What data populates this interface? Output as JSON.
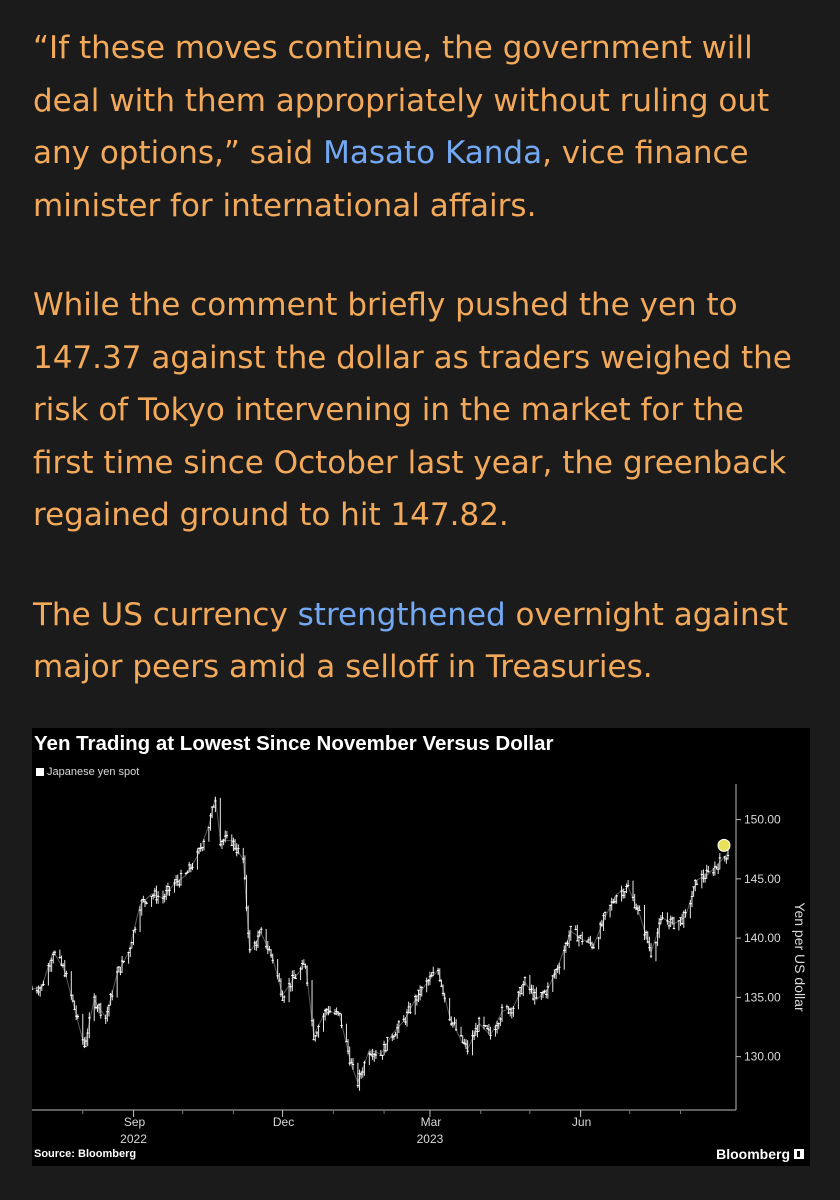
{
  "article": {
    "p1_before": "“If these moves continue, the government will deal with them appropriately without ruling out any options,” said ",
    "p1_link": "Masato Kanda",
    "p1_after": ", vice finance minister for international affairs.",
    "p2": "While the comment briefly pushed the yen to 147.37 against the dollar as traders weighed the risk of Tokyo intervening in the market for the first time since October last year, the greenback regained ground to hit 147.82.",
    "p3_before": "The US currency ",
    "p3_link": "strengthened",
    "p3_after": " overnight against major peers amid a selloff in Treasuries."
  },
  "colors": {
    "article_text": "#f3a95a",
    "link": "#73a8f2",
    "chart_bg": "#000000",
    "series": "#ffffff",
    "highlight": "#e8e25a"
  },
  "chart_data": {
    "type": "line",
    "title": "Yen Trading at Lowest Since November Versus Dollar",
    "legend": [
      "Japanese yen spot"
    ],
    "ylabel": "Yen per US dollar",
    "yticks": [
      "130.00",
      "135.00",
      "140.00",
      "145.00",
      "150.00"
    ],
    "ylim": [
      125.5,
      153
    ],
    "xticks": [
      {
        "label": "Sep",
        "date": "2022-09-01"
      },
      {
        "label": "Dec",
        "date": "2022-12-01"
      },
      {
        "label": "Mar",
        "date": "2023-03-01"
      },
      {
        "label": "Jun",
        "date": "2023-06-01"
      }
    ],
    "year_labels": [
      {
        "label": "2022",
        "date": "2022-09-01"
      },
      {
        "label": "2023",
        "date": "2023-03-01"
      }
    ],
    "x_start": "2022-07-01",
    "x_end": "2023-08-30",
    "grid": false,
    "legend_position": "top-left",
    "series": [
      {
        "name": "Japanese yen spot",
        "points": [
          [
            "2022-07-01",
            135.7
          ],
          [
            "2022-07-07",
            135.9
          ],
          [
            "2022-07-14",
            138.9
          ],
          [
            "2022-07-21",
            137.2
          ],
          [
            "2022-07-28",
            133.5
          ],
          [
            "2022-08-02",
            130.9
          ],
          [
            "2022-08-08",
            134.8
          ],
          [
            "2022-08-15",
            133.3
          ],
          [
            "2022-08-22",
            137.0
          ],
          [
            "2022-08-29",
            138.8
          ],
          [
            "2022-09-05",
            142.8
          ],
          [
            "2022-09-12",
            143.7
          ],
          [
            "2022-09-19",
            143.4
          ],
          [
            "2022-09-26",
            144.6
          ],
          [
            "2022-10-03",
            145.3
          ],
          [
            "2022-10-10",
            146.9
          ],
          [
            "2022-10-17",
            149.5
          ],
          [
            "2022-10-21",
            151.9
          ],
          [
            "2022-10-24",
            148.3
          ],
          [
            "2022-10-31",
            148.2
          ],
          [
            "2022-11-07",
            146.6
          ],
          [
            "2022-11-11",
            138.8
          ],
          [
            "2022-11-18",
            140.4
          ],
          [
            "2022-11-25",
            138.3
          ],
          [
            "2022-12-01",
            135.2
          ],
          [
            "2022-12-08",
            136.6
          ],
          [
            "2022-12-15",
            137.8
          ],
          [
            "2022-12-20",
            131.8
          ],
          [
            "2022-12-28",
            134.0
          ],
          [
            "2023-01-05",
            133.4
          ],
          [
            "2023-01-12",
            129.3
          ],
          [
            "2023-01-16",
            127.8
          ],
          [
            "2023-01-23",
            130.6
          ],
          [
            "2023-01-30",
            130.2
          ],
          [
            "2023-02-06",
            131.9
          ],
          [
            "2023-02-13",
            133.0
          ],
          [
            "2023-02-20",
            134.8
          ],
          [
            "2023-02-27",
            136.2
          ],
          [
            "2023-03-06",
            137.3
          ],
          [
            "2023-03-13",
            133.4
          ],
          [
            "2023-03-20",
            131.4
          ],
          [
            "2023-03-24",
            130.6
          ],
          [
            "2023-03-31",
            132.8
          ],
          [
            "2023-04-07",
            131.8
          ],
          [
            "2023-04-14",
            133.8
          ],
          [
            "2023-04-21",
            134.2
          ],
          [
            "2023-04-28",
            136.3
          ],
          [
            "2023-05-05",
            134.8
          ],
          [
            "2023-05-12",
            135.7
          ],
          [
            "2023-05-19",
            137.9
          ],
          [
            "2023-05-26",
            140.6
          ],
          [
            "2023-06-02",
            139.9
          ],
          [
            "2023-06-09",
            139.4
          ],
          [
            "2023-06-16",
            141.8
          ],
          [
            "2023-06-23",
            143.7
          ],
          [
            "2023-06-30",
            144.3
          ],
          [
            "2023-07-07",
            142.0
          ],
          [
            "2023-07-14",
            138.8
          ],
          [
            "2023-07-21",
            141.7
          ],
          [
            "2023-07-28",
            141.2
          ],
          [
            "2023-08-04",
            141.8
          ],
          [
            "2023-08-11",
            144.9
          ],
          [
            "2023-08-18",
            145.4
          ],
          [
            "2023-08-25",
            146.4
          ],
          [
            "2023-08-30",
            147.2
          ]
        ]
      }
    ],
    "highlight_point": [
      "2023-08-30",
      147.82
    ]
  },
  "footer": {
    "source": "Source: Bloomberg",
    "brand": "Bloomberg"
  }
}
